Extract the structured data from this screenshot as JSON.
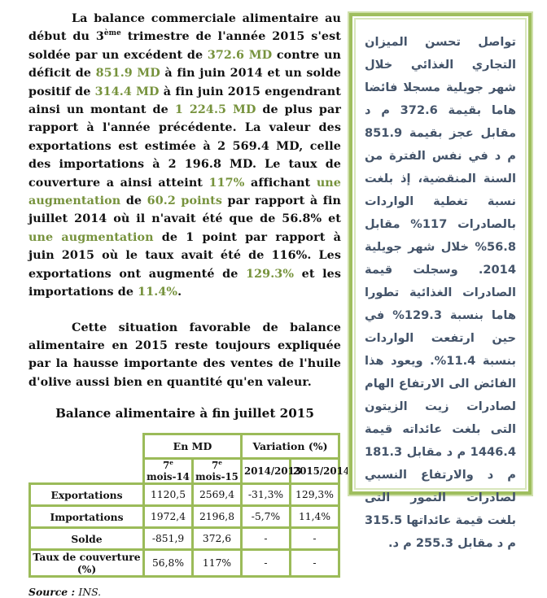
{
  "colors": {
    "olive_text": "#76923C",
    "table_border": "#9BBB59",
    "panel_border": "#9FBE5E",
    "arabic_text": "#44546A"
  },
  "french": {
    "paragraph1": [
      {
        "t": "La balance commerciale alimentaire au début du 3"
      },
      {
        "t": "ème",
        "sup": true
      },
      {
        "t": " trimestre de l'année 2015 s'est soldée par un excédent de "
      },
      {
        "t": "372.6 MD",
        "c": "olive"
      },
      {
        "t": " contre un déficit de "
      },
      {
        "t": "851.9 MD",
        "c": "olive"
      },
      {
        "t": " à fin juin 2014 et un solde positif de "
      },
      {
        "t": "314.4 MD",
        "c": "olive"
      },
      {
        "t": " à fin juin 2015 engendrant ainsi un montant de "
      },
      {
        "t": "1 224.5 MD",
        "c": "olive"
      },
      {
        "t": " de plus par rapport à l'année précédente. La valeur des exportations est estimée à 2 569.4 MD, celle des importations à 2 196.8 MD. Le taux de couverture a ainsi atteint "
      },
      {
        "t": "117%",
        "c": "olive"
      },
      {
        "t": " affichant "
      },
      {
        "t": "une augmentation",
        "c": "olive"
      },
      {
        "t": " de "
      },
      {
        "t": "60.2 points",
        "c": "olive"
      },
      {
        "t": " par rapport à fin juillet 2014 où il n'avait été que de 56.8% et "
      },
      {
        "t": "une augmentation",
        "c": "olive"
      },
      {
        "t": " de 1 point par rapport à juin 2015 où le taux avait été de 116%. Les exportations ont augmenté de "
      },
      {
        "t": "129.3%",
        "c": "olive"
      },
      {
        "t": " et les importations de "
      },
      {
        "t": "11.4%",
        "c": "olive"
      },
      {
        "t": "."
      }
    ],
    "paragraph2": [
      {
        "t": "Cette situation favorable de balance alimentaire en 2015 reste toujours expliquée par la hausse importante des ventes de l'huile d'olive aussi bien en quantité qu'en valeur."
      }
    ]
  },
  "table": {
    "title": "Balance alimentaire à fin juillet 2015",
    "group_headers": [
      {
        "label": "En MD",
        "colspan": 2
      },
      {
        "label": "Variation (%)",
        "colspan": 2
      }
    ],
    "col_headers": [
      [
        {
          "t": "7"
        },
        {
          "t": "e",
          "sup": true
        },
        {
          "t": " mois-14"
        }
      ],
      [
        {
          "t": "7"
        },
        {
          "t": "e",
          "sup": true
        },
        {
          "t": " mois-15"
        }
      ],
      [
        {
          "t": "2014/2013"
        }
      ],
      [
        {
          "t": "2015/2014"
        }
      ]
    ],
    "rows": [
      {
        "label": "Exportations",
        "values": [
          "1120,5",
          "2569,4",
          "-31,3%",
          "129,3%"
        ]
      },
      {
        "label": "Importations",
        "values": [
          "1972,4",
          "2196,8",
          "-5,7%",
          "11,4%"
        ]
      },
      {
        "label": "Solde",
        "values": [
          "-851,9",
          "372,6",
          "-",
          "-"
        ]
      },
      {
        "label": "Taux de couverture (%)",
        "values": [
          "56,8%",
          "117%",
          "-",
          "-"
        ]
      }
    ],
    "source": [
      {
        "t": "Source : ",
        "c": "b"
      },
      {
        "t": "INS."
      }
    ]
  },
  "arabic": {
    "text": "تواصل تحسن الميزان التجاري الغذائي خلال شهر جويلية مسجلا فائضا هاما بقيمة 372.6 م د مقابل عجز بقيمة 851.9 م د في نفس الفترة من السنة المنقضية، إذ بلغت نسبة تغطية الواردات بالصادرات 117% مقابل 56.8% خلال شهر جويلية 2014. وسجلت قيمة الصادرات الغذائية تطورا هاما بنسبة 129.3% في حين ارتفعت الواردات بنسبة 11.4%. ويعود هذا الفائض الى الارتفاع الهام لصادرات زيت الزيتون التى بلغت عائداته قيمة 1446.4 م د مقابل 181.3 م د والارتفاع النسبي لصادرات التمور التى بلغت قيمة عائداتها 315.5 م د مقابل 255.3 م د."
  }
}
